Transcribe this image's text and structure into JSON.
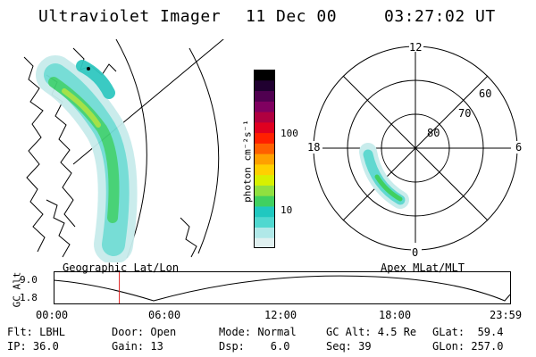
{
  "header": {
    "title": "Ultraviolet Imager",
    "date": "11 Dec 00",
    "time": "03:27:02 UT"
  },
  "geo_panel": {
    "label": "Geographic Lat/Lon"
  },
  "colorbar": {
    "unit_label": "photon cm⁻²s⁻¹",
    "ticks": [
      "100",
      "10"
    ],
    "colors": [
      "#e0f0f0",
      "#b0e8e8",
      "#50d8d0",
      "#20c8c0",
      "#40d060",
      "#90e040",
      "#d8f000",
      "#ffd000",
      "#ffa000",
      "#ff6000",
      "#ff2000",
      "#e00020",
      "#b00040",
      "#800060",
      "#500050",
      "#200030",
      "#000000"
    ]
  },
  "polar_panel": {
    "label": "Apex MLat/MLT",
    "mlt_labels": {
      "top": "12",
      "left": "18",
      "right": "6",
      "bottom": "0"
    },
    "lat_labels": [
      "80",
      "70",
      "60"
    ]
  },
  "altitude_plot": {
    "axis_label": "GC Alt",
    "y_max": "9.0",
    "y_min": "1.8",
    "time_ticks": [
      "00:00",
      "06:00",
      "12:00",
      "18:00",
      "23:59"
    ],
    "current_time_marker_hours": 3.45,
    "marker_color": "#e02020"
  },
  "info": {
    "flt": "Flt: LBHL",
    "ip": "IP: 36.0",
    "door": "Door: Open",
    "gain": "Gain: 13",
    "mode": "Mode: Normal",
    "dsp": "Dsp:    6.0",
    "gc_alt": "GC Alt: 4.5 Re",
    "seq": "Seq: 39",
    "glat": "GLat:  59.4",
    "glon": "GLon: 257.0"
  }
}
